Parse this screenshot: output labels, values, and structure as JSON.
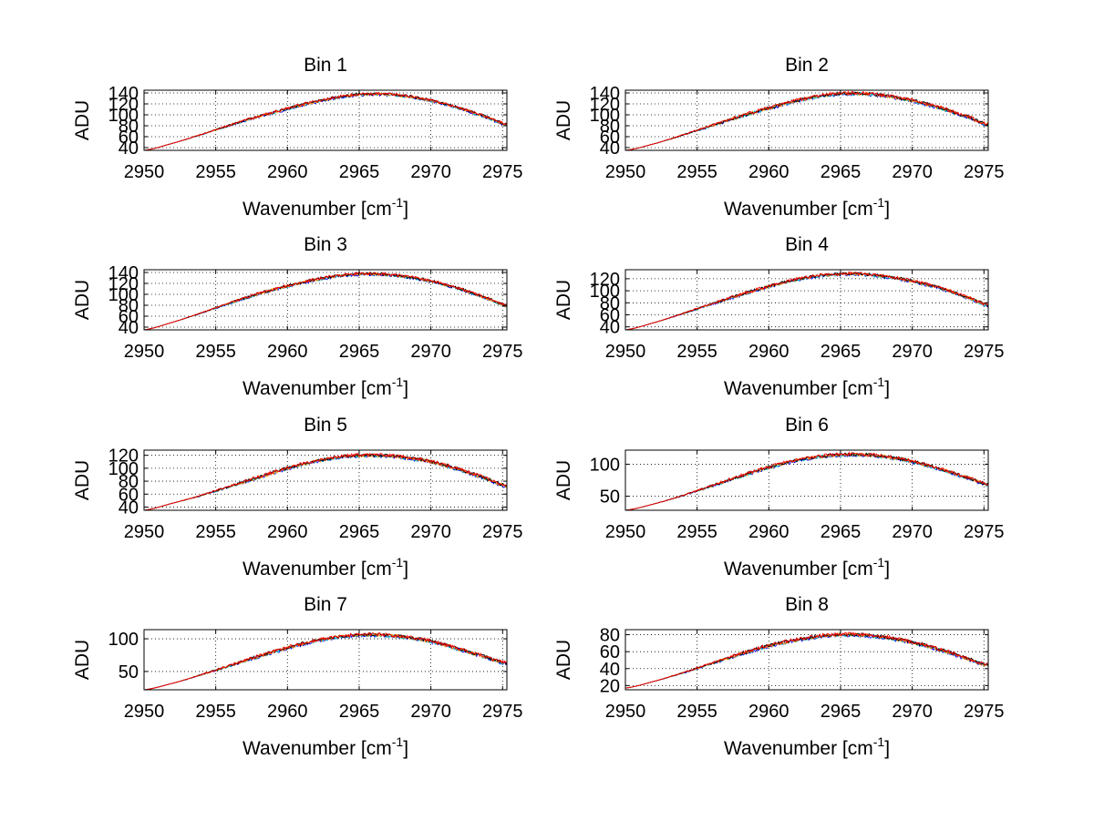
{
  "figure": {
    "background": "#ffffff",
    "series_colors": [
      "#0000ff",
      "#00bfbf",
      "#ff8c00",
      "#000000",
      "#ff0000"
    ]
  },
  "chart_data": [
    {
      "type": "line",
      "title": "Bin 1",
      "xlabel": "Wavenumber [cm",
      "xlabel_sup": "-1",
      "xlabel_suffix": "]",
      "ylabel": "ADU",
      "xlim": [
        2950,
        2975.3
      ],
      "ylim": [
        35,
        145
      ],
      "xticks": [
        2950,
        2955,
        2960,
        2965,
        2970,
        2975
      ],
      "yticks": [
        40,
        60,
        80,
        100,
        120,
        140
      ],
      "yticklabels": [
        "40",
        "60",
        "80",
        "100",
        "120",
        "140"
      ],
      "grid": true,
      "x": [
        2950,
        2952,
        2954,
        2956,
        2958,
        2960,
        2962,
        2964,
        2966,
        2968,
        2970,
        2972,
        2974,
        2975.3
      ],
      "y": [
        35,
        48,
        64,
        81,
        97,
        111,
        124,
        134,
        138,
        135,
        126,
        112,
        95,
        82
      ],
      "noise": 2.5
    },
    {
      "type": "line",
      "title": "Bin 2",
      "xlabel": "Wavenumber [cm",
      "xlabel_sup": "-1",
      "xlabel_suffix": "]",
      "ylabel": "ADU",
      "xlim": [
        2950,
        2975.3
      ],
      "ylim": [
        35,
        145
      ],
      "xticks": [
        2950,
        2955,
        2960,
        2965,
        2970,
        2975
      ],
      "yticks": [
        40,
        60,
        80,
        100,
        120,
        140
      ],
      "yticklabels": [
        "40",
        "60",
        "80",
        "100",
        "120",
        "140"
      ],
      "grid": true,
      "x": [
        2950,
        2952,
        2954,
        2956,
        2958,
        2960,
        2962,
        2964,
        2966,
        2968,
        2970,
        2972,
        2974,
        2975.3
      ],
      "y": [
        35,
        47,
        63,
        80,
        97,
        112,
        126,
        136,
        139,
        135,
        126,
        112,
        95,
        82
      ],
      "noise": 3
    },
    {
      "type": "line",
      "title": "Bin 3",
      "xlabel": "Wavenumber [cm",
      "xlabel_sup": "-1",
      "xlabel_suffix": "]",
      "ylabel": "ADU",
      "xlim": [
        2950,
        2975.3
      ],
      "ylim": [
        35,
        145
      ],
      "xticks": [
        2950,
        2955,
        2960,
        2965,
        2970,
        2975
      ],
      "yticks": [
        40,
        60,
        80,
        100,
        120,
        140
      ],
      "yticklabels": [
        "40",
        "60",
        "80",
        "100",
        "120",
        "140"
      ],
      "grid": true,
      "x": [
        2950,
        2952,
        2954,
        2956,
        2958,
        2960,
        2962,
        2964,
        2966,
        2968,
        2970,
        2972,
        2974,
        2975.3
      ],
      "y": [
        35,
        49,
        66,
        84,
        101,
        115,
        127,
        135,
        137,
        133,
        124,
        110,
        92,
        79
      ],
      "noise": 2.5
    },
    {
      "type": "line",
      "title": "Bin 4",
      "xlabel": "Wavenumber [cm",
      "xlabel_sup": "-1",
      "xlabel_suffix": "]",
      "ylabel": "ADU",
      "xlim": [
        2950,
        2975.3
      ],
      "ylim": [
        35,
        135
      ],
      "xticks": [
        2950,
        2955,
        2960,
        2965,
        2970,
        2975
      ],
      "yticks": [
        40,
        60,
        80,
        100,
        120
      ],
      "yticklabels": [
        "40",
        "60",
        "80",
        "100",
        "120"
      ],
      "grid": true,
      "x": [
        2950,
        2952,
        2954,
        2956,
        2958,
        2960,
        2962,
        2964,
        2966,
        2968,
        2970,
        2972,
        2974,
        2975.3
      ],
      "y": [
        35,
        47,
        62,
        78,
        93,
        107,
        119,
        126,
        128,
        124,
        116,
        104,
        88,
        76
      ],
      "noise": 2.5
    },
    {
      "type": "line",
      "title": "Bin 5",
      "xlabel": "Wavenumber [cm",
      "xlabel_sup": "-1",
      "xlabel_suffix": "]",
      "ylabel": "ADU",
      "xlim": [
        2950,
        2975.3
      ],
      "ylim": [
        35,
        128
      ],
      "xticks": [
        2950,
        2955,
        2960,
        2965,
        2970,
        2975
      ],
      "yticks": [
        40,
        60,
        80,
        100,
        120
      ],
      "yticklabels": [
        "40",
        "60",
        "80",
        "100",
        "120"
      ],
      "grid": true,
      "x": [
        2950,
        2952,
        2954,
        2956,
        2958,
        2960,
        2962,
        2964,
        2966,
        2968,
        2970,
        2972,
        2974,
        2975.3
      ],
      "y": [
        35,
        46,
        58,
        72,
        86,
        100,
        111,
        118,
        120,
        117,
        110,
        98,
        83,
        72
      ],
      "noise": 2.5
    },
    {
      "type": "line",
      "title": "Bin 6",
      "xlabel": "Wavenumber [cm",
      "xlabel_sup": "-1",
      "xlabel_suffix": "]",
      "ylabel": "ADU",
      "xlim": [
        2950,
        2975.3
      ],
      "ylim": [
        28,
        122
      ],
      "xticks": [
        2950,
        2955,
        2960,
        2965,
        2970,
        2975
      ],
      "yticks": [
        50,
        100
      ],
      "yticklabels": [
        "50",
        "100"
      ],
      "grid": true,
      "x": [
        2950,
        2952,
        2954,
        2956,
        2958,
        2960,
        2962,
        2964,
        2966,
        2968,
        2970,
        2972,
        2974,
        2975.3
      ],
      "y": [
        28,
        38,
        51,
        66,
        81,
        95,
        106,
        113,
        115,
        112,
        104,
        92,
        78,
        68
      ],
      "noise": 2.5
    },
    {
      "type": "line",
      "title": "Bin 7",
      "xlabel": "Wavenumber [cm",
      "xlabel_sup": "-1",
      "xlabel_suffix": "]",
      "ylabel": "ADU",
      "xlim": [
        2950,
        2975.3
      ],
      "ylim": [
        22,
        114
      ],
      "xticks": [
        2950,
        2955,
        2960,
        2965,
        2970,
        2975
      ],
      "yticks": [
        50,
        100
      ],
      "yticklabels": [
        "50",
        "100"
      ],
      "grid": true,
      "x": [
        2950,
        2952,
        2954,
        2956,
        2958,
        2960,
        2962,
        2964,
        2966,
        2968,
        2970,
        2972,
        2974,
        2975.3
      ],
      "y": [
        22,
        32,
        45,
        59,
        73,
        86,
        97,
        104,
        106,
        103,
        96,
        84,
        71,
        62
      ],
      "noise": 2.5
    },
    {
      "type": "line",
      "title": "Bin 8",
      "xlabel": "Wavenumber [cm",
      "xlabel_sup": "-1",
      "xlabel_suffix": "]",
      "ylabel": "ADU",
      "xlim": [
        2950,
        2975.3
      ],
      "ylim": [
        15,
        86
      ],
      "xticks": [
        2950,
        2955,
        2960,
        2965,
        2970,
        2975
      ],
      "yticks": [
        20,
        40,
        60,
        80
      ],
      "yticklabels": [
        "20",
        "40",
        "60",
        "80"
      ],
      "grid": true,
      "x": [
        2950,
        2952,
        2954,
        2956,
        2958,
        2960,
        2962,
        2964,
        2966,
        2968,
        2970,
        2972,
        2974,
        2975.3
      ],
      "y": [
        17,
        25,
        35,
        46,
        57,
        67,
        74,
        79,
        80,
        77,
        71,
        62,
        51,
        44
      ],
      "noise": 2
    }
  ]
}
